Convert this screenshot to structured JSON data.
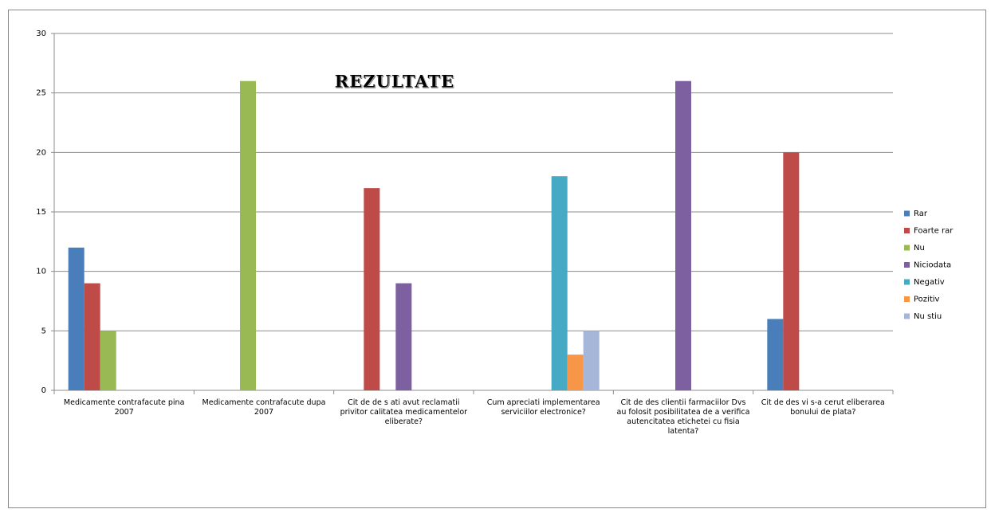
{
  "chart_data": {
    "type": "bar",
    "title": "REZULTATE",
    "categories": [
      "Medicamente contrafacute pina 2007",
      "Medicamente contrafacute dupa 2007",
      "Cit de de s ati avut reclamatii privitor calitatea medicamentelor eliberate?",
      "Cum apreciati implementarea serviciilor electronice?",
      "Cit de des clientii farmaciilor Dvs au folosit posibilitatea de a verifica autencitatea etichetei cu fisia latenta?",
      "Cit de des vi s-a cerut eliberarea bonului de plata?"
    ],
    "series": [
      {
        "name": "Rar",
        "color": "#4a7ebb",
        "values": [
          12,
          null,
          null,
          null,
          null,
          6
        ]
      },
      {
        "name": "Foarte rar",
        "color": "#be4b48",
        "values": [
          9,
          null,
          17,
          null,
          null,
          20
        ]
      },
      {
        "name": "Nu",
        "color": "#98b954",
        "values": [
          5,
          26,
          null,
          null,
          null,
          null
        ]
      },
      {
        "name": "Niciodata",
        "color": "#7d60a0",
        "values": [
          null,
          null,
          9,
          null,
          26,
          null
        ]
      },
      {
        "name": "Negativ",
        "color": "#46aac5",
        "values": [
          null,
          null,
          null,
          18,
          null,
          null
        ]
      },
      {
        "name": "Pozitiv",
        "color": "#f79646",
        "values": [
          null,
          null,
          null,
          3,
          null,
          null
        ]
      },
      {
        "name": "Nu stiu",
        "color": "#a5b6d9",
        "values": [
          null,
          null,
          null,
          5,
          null,
          null
        ]
      }
    ],
    "ylim": [
      0,
      30
    ],
    "yticks": [
      0,
      5,
      10,
      15,
      20,
      25,
      30
    ],
    "grid": true,
    "legend": "right"
  }
}
